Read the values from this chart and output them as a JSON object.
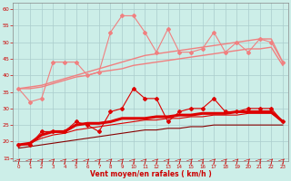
{
  "x": [
    0,
    1,
    2,
    3,
    4,
    5,
    6,
    7,
    8,
    9,
    10,
    11,
    12,
    13,
    14,
    15,
    16,
    17,
    18,
    19,
    20,
    21,
    22,
    23
  ],
  "lines": [
    {
      "y": [
        36,
        32,
        33,
        44,
        44,
        44,
        40,
        41,
        53,
        58,
        58,
        53,
        47,
        54,
        47,
        47,
        48,
        53,
        47,
        50,
        47,
        51,
        50,
        44
      ],
      "color": "#f08080",
      "lw": 0.8,
      "marker": "D",
      "ms": 2.0,
      "zorder": 5
    },
    {
      "y": [
        36,
        36.5,
        37,
        38,
        39,
        40,
        41,
        42,
        43,
        44,
        45,
        46,
        46.5,
        47,
        47.5,
        48,
        48.5,
        49,
        49.5,
        50,
        50.5,
        51,
        51,
        44
      ],
      "color": "#f08080",
      "lw": 1.0,
      "marker": null,
      "ms": 0,
      "zorder": 2
    },
    {
      "y": [
        36,
        36,
        36.5,
        37.5,
        38.5,
        39.5,
        40,
        41,
        41.5,
        42,
        43,
        43.5,
        44,
        44.5,
        45,
        45.5,
        46,
        46.5,
        47,
        47.5,
        48,
        48,
        48.5,
        43
      ],
      "color": "#f08080",
      "lw": 1.0,
      "marker": null,
      "ms": 0,
      "zorder": 2
    },
    {
      "y": [
        19,
        19,
        23,
        23,
        23,
        26,
        25,
        23,
        29,
        30,
        36,
        33,
        33,
        26,
        29,
        30,
        30,
        33,
        29,
        29,
        30,
        30,
        30,
        26
      ],
      "color": "#dd0000",
      "lw": 0.8,
      "marker": "D",
      "ms": 2.0,
      "zorder": 6
    },
    {
      "y": [
        19,
        19.5,
        22,
        23,
        23,
        25,
        25.5,
        25.5,
        26,
        27,
        27,
        27,
        27.5,
        27.5,
        28,
        28,
        28.5,
        28.5,
        28.5,
        29,
        29,
        29,
        29,
        26
      ],
      "color": "#dd0000",
      "lw": 2.2,
      "marker": null,
      "ms": 0,
      "zorder": 4
    },
    {
      "y": [
        19,
        19.5,
        21,
        22,
        22.5,
        23.5,
        24,
        24.5,
        25,
        25.5,
        26,
        26.5,
        26.5,
        27,
        27,
        27.5,
        27.5,
        28,
        28,
        28,
        28.5,
        28.5,
        28.5,
        26
      ],
      "color": "#dd0000",
      "lw": 0.8,
      "marker": null,
      "ms": 0,
      "zorder": 3
    },
    {
      "y": [
        18,
        18.5,
        19,
        19.5,
        20,
        20.5,
        21,
        21.5,
        22,
        22.5,
        23,
        23.5,
        23.5,
        24,
        24,
        24.5,
        24.5,
        25,
        25,
        25,
        25,
        25,
        25,
        25
      ],
      "color": "#880000",
      "lw": 0.8,
      "marker": null,
      "ms": 0,
      "zorder": 2
    }
  ],
  "xlabel": "Vent moyen/en rafales ( km/h )",
  "ylim": [
    14,
    62
  ],
  "yticks": [
    15,
    20,
    25,
    30,
    35,
    40,
    45,
    50,
    55,
    60
  ],
  "xlim": [
    -0.5,
    23.5
  ],
  "xticks": [
    0,
    1,
    2,
    3,
    4,
    5,
    6,
    7,
    8,
    9,
    10,
    11,
    12,
    13,
    14,
    15,
    16,
    17,
    18,
    19,
    20,
    21,
    22,
    23
  ],
  "bg_color": "#cceee8",
  "grid_color": "#aacccc"
}
